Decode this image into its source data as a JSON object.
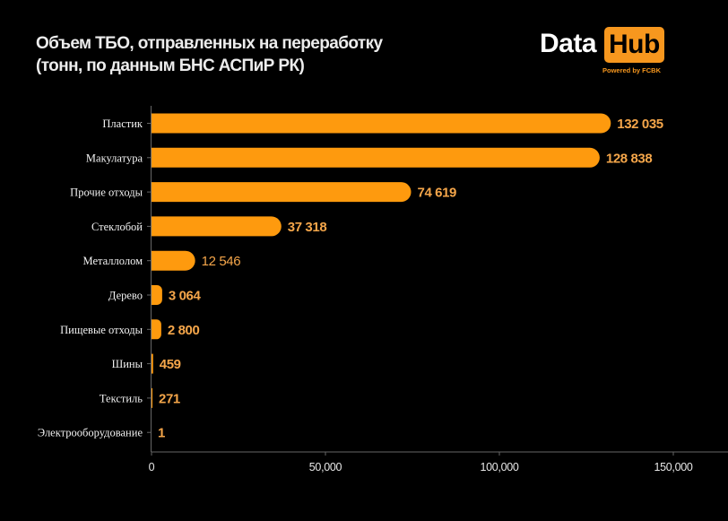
{
  "header": {
    "title_line1": "Объем ТБО, отправленных на переработку",
    "title_line2": "(тонн, по данным БНС АСПиР РК)"
  },
  "logo": {
    "word1": "Data",
    "word2": "Hub",
    "tagline": "Powered by FCBK"
  },
  "colors": {
    "bar": "#fe9a0e",
    "value_label": "#f5a64a",
    "accent": "#f7971e",
    "axis": "#666666",
    "background": "#000000"
  },
  "chart_data": {
    "type": "bar",
    "orientation": "horizontal",
    "title": "Объем ТБО, отправленных на переработку (тонн, по данным БНС АСПиР РК)",
    "xlabel": "",
    "ylabel": "",
    "categories": [
      "Пластик",
      "Макулатура",
      "Прочие отходы",
      "Стеклобой",
      "Металлолом",
      "Дерево",
      "Пищевые отходы",
      "Шины",
      "Текстиль",
      "Электрооборудование"
    ],
    "values": [
      132035,
      128838,
      74619,
      37318,
      12546,
      3064,
      2800,
      459,
      271,
      1
    ],
    "value_labels": [
      "132 035",
      "128 838",
      "74 619",
      "37 318",
      "12 546",
      "3 064",
      "2 800",
      "459",
      "271",
      "1"
    ],
    "xlim": [
      0,
      165000
    ],
    "xticks": [
      0,
      50000,
      100000,
      150000
    ],
    "xtick_labels": [
      "0",
      "50,000",
      "100,000",
      "150,000"
    ],
    "grid": false,
    "legend": "none"
  }
}
